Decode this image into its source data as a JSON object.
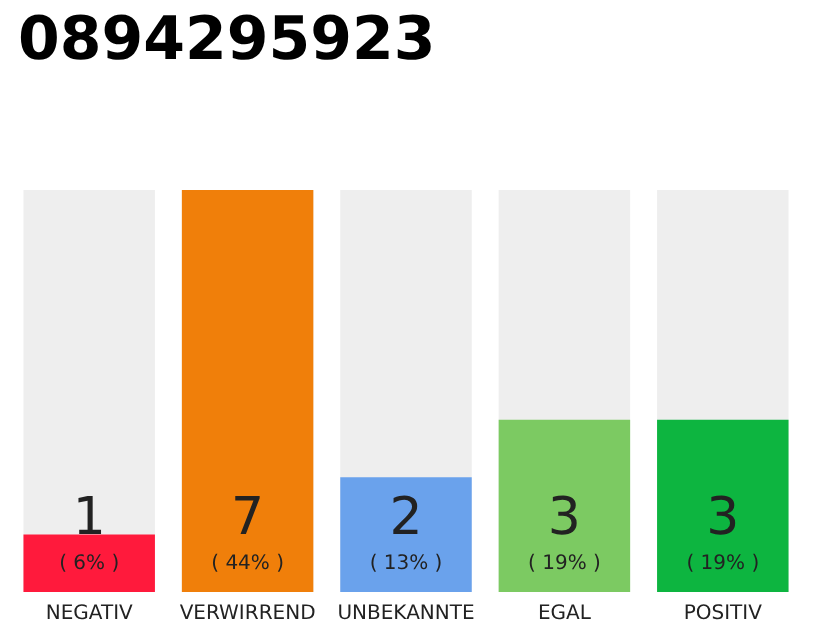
{
  "chart_data": {
    "type": "bar",
    "title": "0894295923",
    "categories": [
      "NEGATIV",
      "VERWIRREND",
      "UNBEKANNTE",
      "EGAL",
      "POSITIV"
    ],
    "values": [
      1,
      7,
      2,
      3,
      3
    ],
    "colors": [
      "#ff1a3c",
      "#f07f0a",
      "#6aa2ec",
      "#7cca62",
      "#0db540"
    ],
    "data_labels": true,
    "annotations": [
      "( 6% )",
      "( 44% )",
      "( 13% )",
      "( 19% )",
      "( 19% )"
    ],
    "grid": false
  }
}
